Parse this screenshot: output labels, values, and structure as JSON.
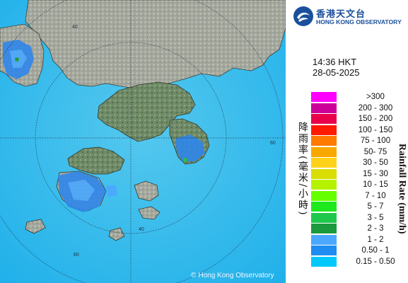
{
  "header": {
    "logo_zh": "香港天文台",
    "logo_en": "HONG KONG OBSERVATORY"
  },
  "time": {
    "hkt": "14:36 HKT",
    "date": "28-05-2025"
  },
  "legend": {
    "title_zh": "降雨率(毫米/小時)",
    "title_en": "Rainfall Rate (mm/h)",
    "items": [
      {
        "label": ">300",
        "color": "#ff00ff"
      },
      {
        "label": "200 - 300",
        "color": "#cc0099"
      },
      {
        "label": "150 - 200",
        "color": "#e8004a"
      },
      {
        "label": "100 - 150",
        "color": "#ff1a00"
      },
      {
        "label": "75 - 100",
        "color": "#ff7a00"
      },
      {
        "label": "50- 75",
        "color": "#f9a800"
      },
      {
        "label": "30 - 50",
        "color": "#ffd21a"
      },
      {
        "label": "15 - 30",
        "color": "#d9de00"
      },
      {
        "label": "10 - 15",
        "color": "#b6f200"
      },
      {
        "label": "7 - 10",
        "color": "#66ff00"
      },
      {
        "label": "5 - 7",
        "color": "#1ee81e"
      },
      {
        "label": "3 - 5",
        "color": "#1ec84b"
      },
      {
        "label": "2 - 3",
        "color": "#1a9a3c"
      },
      {
        "label": "1 - 2",
        "color": "#4aa8ff"
      },
      {
        "label": "0.50 - 1",
        "color": "#1e8cf0"
      },
      {
        "label": "0.15 - 0.50",
        "color": "#00c8ff"
      }
    ]
  },
  "map": {
    "range_rings": [
      "40",
      "40",
      "60",
      "60"
    ],
    "copyright": "Hong Kong Observatory",
    "sea_color": "#2ab7ee",
    "land_color": "#9fa398"
  }
}
